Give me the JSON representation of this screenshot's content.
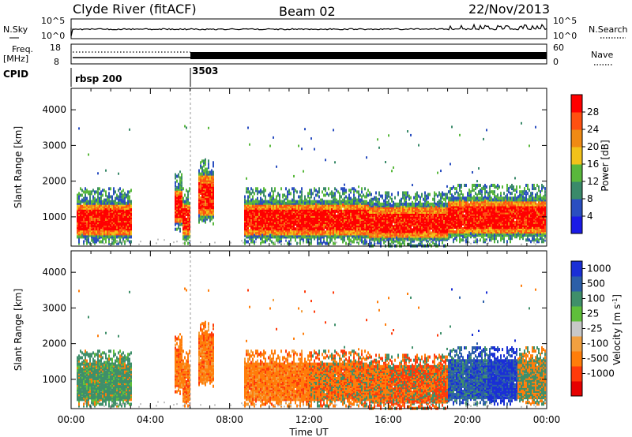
{
  "header": {
    "title": "Clyde River (fitACF)",
    "beam": "Beam 02",
    "date": "22/Nov/2013"
  },
  "top_panels": {
    "nsky_label": "N.Sky",
    "nsky_ticks": [
      "10^5",
      "10^0"
    ],
    "nsearch_label": "N.Search",
    "freq_label": "Freq.",
    "freq_unit": "[MHz]",
    "freq_ticks": [
      "18",
      "8"
    ],
    "nave_ticks": [
      "60",
      "0"
    ],
    "nave_label": "Nave",
    "cpid_label": "CPID",
    "cpid_segments": [
      {
        "label": "rbsp 200",
        "start_hour": 0
      },
      {
        "label": "3503",
        "start_hour": 6
      }
    ]
  },
  "x_axis": {
    "title": "Time UT",
    "ticks": [
      "00:00",
      "04:00",
      "08:00",
      "12:00",
      "16:00",
      "20:00",
      "00:00"
    ]
  },
  "colors": {
    "power": [
      "#1a1ae6",
      "#2a4ec0",
      "#3a8a6a",
      "#59b83c",
      "#f2c21a",
      "#f08a14",
      "#ff5010",
      "#ff0000"
    ],
    "velocity": [
      "#e60000",
      "#ff3a0a",
      "#ff7d0a",
      "#f2a040",
      "#c8c8c8",
      "#5fbf3a",
      "#3f8f6a",
      "#2c5fa8",
      "#1a2fd6"
    ]
  },
  "chart_data": [
    {
      "type": "heatmap",
      "ylabel": "Slant Range [km]",
      "xlabel": "",
      "y_ticks": [
        "1000",
        "2000",
        "3000",
        "4000"
      ],
      "ylim": [
        180,
        4600
      ],
      "xlim_hours": [
        0,
        24
      ],
      "colorbar": {
        "label": "Power [dB]",
        "ticks": [
          "4",
          "8",
          "12",
          "16",
          "20",
          "24",
          "28"
        ],
        "range": [
          0,
          32
        ]
      }
    },
    {
      "type": "heatmap",
      "ylabel": "Slant Range [km]",
      "xlabel": "Time UT",
      "y_ticks": [
        "1000",
        "2000",
        "3000",
        "4000"
      ],
      "ylim": [
        180,
        4600
      ],
      "xlim_hours": [
        0,
        24
      ],
      "colorbar": {
        "label": "Velocity [m s^-1]",
        "ticks": [
          "1000",
          "500",
          "100",
          "25",
          "-25",
          "-100",
          "-500",
          "-1000"
        ]
      }
    }
  ]
}
